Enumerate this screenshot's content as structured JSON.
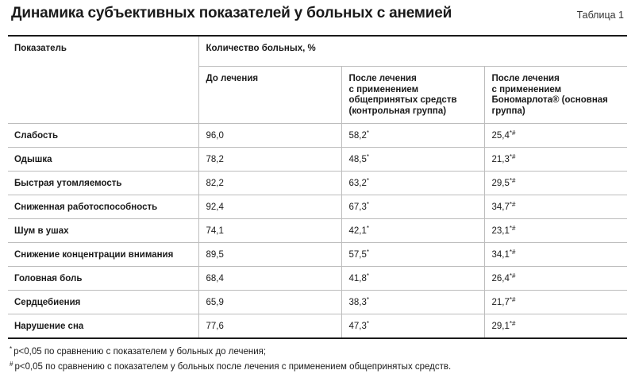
{
  "title": "Динамика субъективных показателей у больных с анемией",
  "table_label": "Таблица 1",
  "header": {
    "indicator": "Показатель",
    "group": "Количество больных, %",
    "col_before": "До лечения",
    "col_control": [
      "После лечения",
      "с применением",
      "общепринятых средств",
      "(контрольная группа)"
    ],
    "col_main": [
      "После лечения",
      "с применением",
      "Бономарлота® (основная",
      "группа)"
    ]
  },
  "rows": [
    {
      "name": "Слабость",
      "before": "96,0",
      "control": "58,2",
      "control_mark": "*",
      "main": "25,4",
      "main_mark": "*#"
    },
    {
      "name": "Одышка",
      "before": "78,2",
      "control": "48,5",
      "control_mark": "*",
      "main": "21,3",
      "main_mark": "*#"
    },
    {
      "name": "Быстрая утомляемость",
      "before": "82,2",
      "control": "63,2",
      "control_mark": "*",
      "main": "29,5",
      "main_mark": "*#"
    },
    {
      "name": "Сниженная работоспособность",
      "before": "92,4",
      "control": "67,3",
      "control_mark": "*",
      "main": "34,7",
      "main_mark": "*#"
    },
    {
      "name": "Шум в ушах",
      "before": "74,1",
      "control": "42,1",
      "control_mark": "*",
      "main": "23,1",
      "main_mark": "*#"
    },
    {
      "name": "Снижение концентрации внимания",
      "before": "89,5",
      "control": "57,5",
      "control_mark": "*",
      "main": "34,1",
      "main_mark": "*#"
    },
    {
      "name": "Головная боль",
      "before": "68,4",
      "control": "41,8",
      "control_mark": "*",
      "main": "26,4",
      "main_mark": "*#"
    },
    {
      "name": "Сердцебиения",
      "before": "65,9",
      "control": "38,3",
      "control_mark": "*",
      "main": "21,7",
      "main_mark": "*#"
    },
    {
      "name": "Нарушение сна",
      "before": "77,6",
      "control": "47,3",
      "control_mark": "*",
      "main": "29,1",
      "main_mark": "*#"
    }
  ],
  "footnotes": [
    {
      "mark": "*",
      "text": "p<0,05 по сравнению с показателем у больных до лечения;"
    },
    {
      "mark": "#",
      "text": "p<0,05 по сравнению с показателем у больных после лечения с применением общепринятых средств."
    }
  ]
}
